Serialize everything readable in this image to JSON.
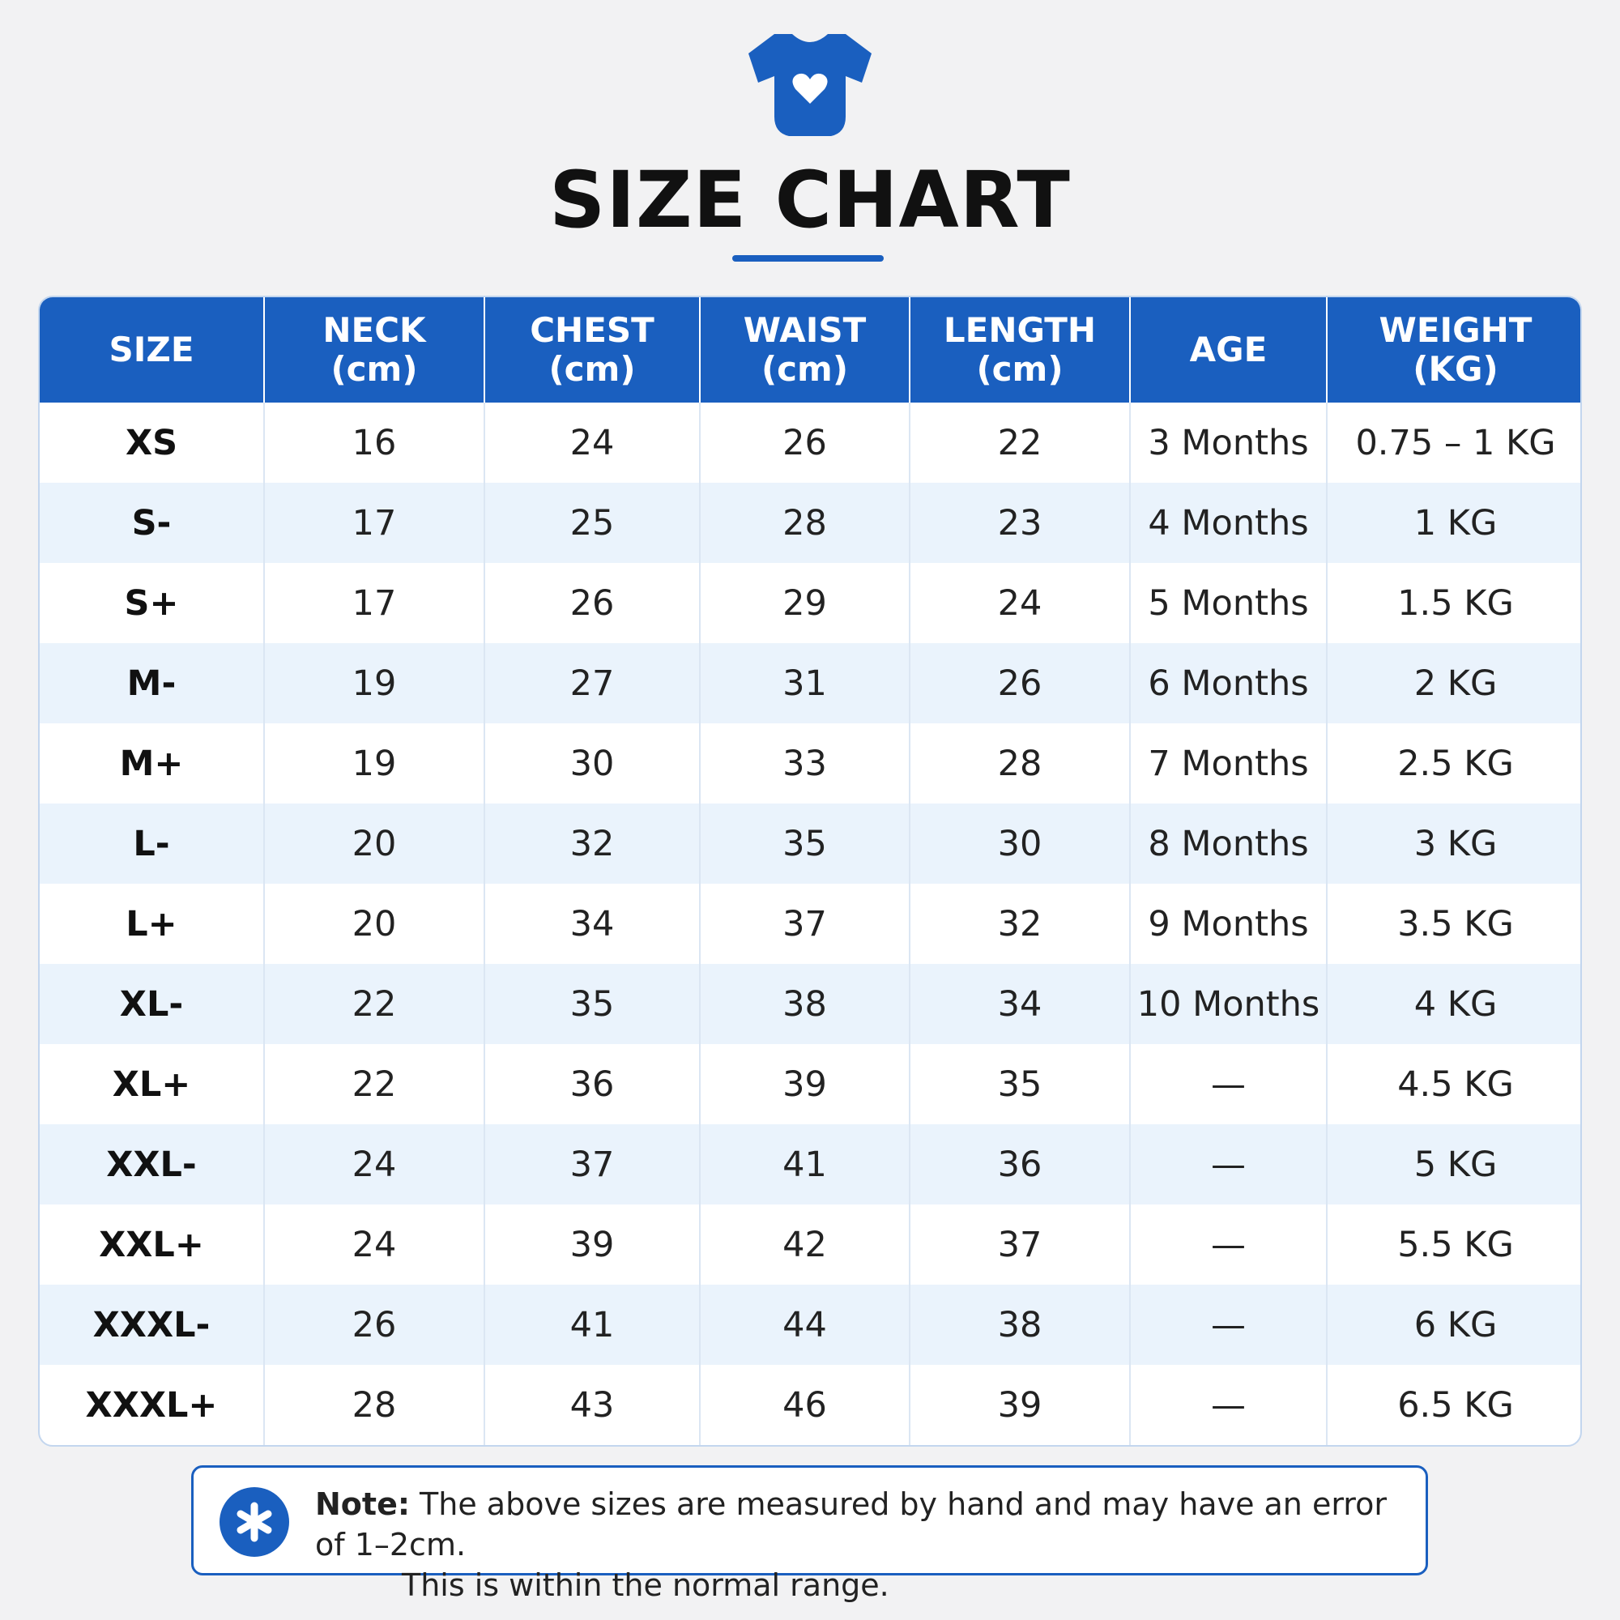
{
  "header": {
    "title": "SIZE CHART"
  },
  "table": {
    "columns": [
      {
        "name": "SIZE"
      },
      {
        "name": "NECK",
        "unit": "(cm)"
      },
      {
        "name": "CHEST",
        "unit": "(cm)"
      },
      {
        "name": "WAIST",
        "unit": "(cm)"
      },
      {
        "name": "LENGTH",
        "unit": "(cm)"
      },
      {
        "name": "AGE"
      },
      {
        "name": "WEIGHT",
        "unit": "(KG)"
      }
    ],
    "rows": [
      [
        "XS",
        16,
        24,
        26,
        22,
        "3 Months",
        "0.75 – 1 KG"
      ],
      [
        "S-",
        17,
        25,
        28,
        23,
        "4 Months",
        "1 KG"
      ],
      [
        "S+",
        17,
        26,
        29,
        24,
        "5 Months",
        "1.5 KG"
      ],
      [
        "M-",
        19,
        27,
        31,
        26,
        "6 Months",
        "2 KG"
      ],
      [
        "M+",
        19,
        30,
        33,
        28,
        "7 Months",
        "2.5 KG"
      ],
      [
        "L-",
        20,
        32,
        35,
        30,
        "8 Months",
        "3 KG"
      ],
      [
        "L+",
        20,
        34,
        37,
        32,
        "9 Months",
        "3.5 KG"
      ],
      [
        "XL-",
        22,
        35,
        38,
        34,
        "10 Months",
        "4 KG"
      ],
      [
        "XL+",
        22,
        36,
        39,
        35,
        "—",
        "4.5 KG"
      ],
      [
        "XXL-",
        24,
        37,
        41,
        36,
        "—",
        "5 KG"
      ],
      [
        "XXL+",
        24,
        39,
        42,
        37,
        "—",
        "5.5 KG"
      ],
      [
        "XXXL-",
        26,
        41,
        44,
        38,
        "—",
        "6 KG"
      ],
      [
        "XXXL+",
        28,
        43,
        46,
        39,
        "—",
        "6.5 KG"
      ]
    ]
  },
  "note": {
    "label": "Note:",
    "lines": [
      "The above sizes are measured by hand and may have an error of 1–2cm.",
      "This is within the normal range."
    ]
  }
}
